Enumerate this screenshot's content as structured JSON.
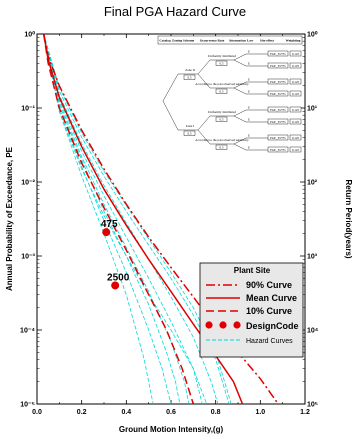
{
  "chart_data": {
    "type": "line",
    "title": "Final PGA Hazard Curve",
    "xlabel": "Ground Motion Intensity,(g)",
    "ylabel": "Annual Probability of Exceedance, PE",
    "y2label": "Return Period(years)",
    "xlim": [
      0.0,
      1.2
    ],
    "ylim": [
      1e-05,
      1
    ],
    "yscale": "log",
    "x_ticks": [
      "0.0",
      "0.2",
      "0.4",
      "0.6",
      "0.8",
      "1.0",
      "1.2"
    ],
    "y_ticks": [
      "10⁻⁵",
      "10⁻⁴",
      "10⁻³",
      "10⁻²",
      "10⁻¹",
      "10⁰"
    ],
    "y2_ticks": [
      "10⁵",
      "10⁴",
      "10³",
      "10²",
      "10¹",
      "10⁰"
    ],
    "legend": {
      "title": "Plant Site",
      "placement": "right",
      "entries": [
        "90% Curve",
        "Mean Curve",
        "10% Curve",
        "DesignCode",
        "Hazard Curves"
      ]
    },
    "series": [
      {
        "name": "90% Curve",
        "style": "dash-dot",
        "color": "#e00000",
        "points": [
          [
            0.03,
            1.0
          ],
          [
            0.05,
            0.5
          ],
          [
            0.1,
            0.2
          ],
          [
            0.2,
            0.05
          ],
          [
            0.3,
            0.015
          ],
          [
            0.4,
            0.005
          ],
          [
            0.5,
            0.0018
          ],
          [
            0.6,
            0.0007
          ],
          [
            0.7,
            0.00028
          ],
          [
            0.8,
            0.00011
          ],
          [
            0.9,
            5e-05
          ],
          [
            1.0,
            2.2e-05
          ],
          [
            1.08,
            1e-05
          ]
        ]
      },
      {
        "name": "Mean Curve",
        "style": "solid",
        "color": "#e00000",
        "points": [
          [
            0.03,
            1.0
          ],
          [
            0.05,
            0.45
          ],
          [
            0.1,
            0.14
          ],
          [
            0.2,
            0.03
          ],
          [
            0.3,
            0.008
          ],
          [
            0.4,
            0.0026
          ],
          [
            0.5,
            0.0009
          ],
          [
            0.6,
            0.00033
          ],
          [
            0.7,
            0.00012
          ],
          [
            0.8,
            4.5e-05
          ],
          [
            0.88,
            2e-05
          ],
          [
            0.92,
            1e-05
          ]
        ]
      },
      {
        "name": "10% Curve",
        "style": "dashed",
        "color": "#e00000",
        "points": [
          [
            0.03,
            1.0
          ],
          [
            0.05,
            0.4
          ],
          [
            0.1,
            0.1
          ],
          [
            0.2,
            0.018
          ],
          [
            0.3,
            0.0045
          ],
          [
            0.4,
            0.0012
          ],
          [
            0.5,
            0.0003
          ],
          [
            0.58,
            0.0001
          ],
          [
            0.65,
            3e-05
          ],
          [
            0.7,
            1e-05
          ]
        ]
      },
      {
        "name": "Hazard Curves",
        "style": "dashed",
        "color": "#00d8d8",
        "curves": [
          [
            [
              0.03,
              1.0
            ],
            [
              0.1,
              0.09
            ],
            [
              0.2,
              0.012
            ],
            [
              0.3,
              0.002
            ],
            [
              0.4,
              0.0003
            ],
            [
              0.48,
              4e-05
            ],
            [
              0.52,
              1e-05
            ]
          ],
          [
            [
              0.03,
              1.0
            ],
            [
              0.1,
              0.1
            ],
            [
              0.2,
              0.016
            ],
            [
              0.3,
              0.003
            ],
            [
              0.4,
              0.0006
            ],
            [
              0.5,
              0.0001
            ],
            [
              0.56,
              3e-05
            ],
            [
              0.6,
              1e-05
            ]
          ],
          [
            [
              0.03,
              1.0
            ],
            [
              0.1,
              0.11
            ],
            [
              0.2,
              0.02
            ],
            [
              0.3,
              0.004
            ],
            [
              0.4,
              0.001
            ],
            [
              0.5,
              0.00022
            ],
            [
              0.58,
              5e-05
            ],
            [
              0.62,
              2e-05
            ],
            [
              0.64,
              1e-05
            ]
          ],
          [
            [
              0.03,
              1.0
            ],
            [
              0.1,
              0.12
            ],
            [
              0.2,
              0.022
            ],
            [
              0.3,
              0.005
            ],
            [
              0.4,
              0.0013
            ],
            [
              0.5,
              0.00033
            ],
            [
              0.6,
              7e-05
            ],
            [
              0.66,
              2e-05
            ],
            [
              0.68,
              1e-05
            ]
          ],
          [
            [
              0.03,
              1.0
            ],
            [
              0.1,
              0.13
            ],
            [
              0.2,
              0.026
            ],
            [
              0.3,
              0.0065
            ],
            [
              0.4,
              0.0018
            ],
            [
              0.5,
              0.0005
            ],
            [
              0.6,
              0.00013
            ],
            [
              0.7,
              3e-05
            ],
            [
              0.74,
              1e-05
            ]
          ],
          [
            [
              0.03,
              1.0
            ],
            [
              0.1,
              0.15
            ],
            [
              0.2,
              0.033
            ],
            [
              0.3,
              0.009
            ],
            [
              0.4,
              0.0028
            ],
            [
              0.5,
              0.0009
            ],
            [
              0.6,
              0.00028
            ],
            [
              0.7,
              8e-05
            ],
            [
              0.78,
              2e-05
            ],
            [
              0.81,
              1e-05
            ]
          ],
          [
            [
              0.03,
              1.0
            ],
            [
              0.1,
              0.17
            ],
            [
              0.2,
              0.04
            ],
            [
              0.3,
              0.012
            ],
            [
              0.4,
              0.004
            ],
            [
              0.5,
              0.0014
            ],
            [
              0.6,
              0.0005
            ],
            [
              0.7,
              0.00016
            ],
            [
              0.8,
              4e-05
            ],
            [
              0.86,
              1e-05
            ]
          ],
          [
            [
              0.03,
              1.0
            ],
            [
              0.1,
              0.19
            ],
            [
              0.2,
              0.046
            ],
            [
              0.3,
              0.014
            ],
            [
              0.4,
              0.0048
            ],
            [
              0.5,
              0.0017
            ],
            [
              0.6,
              0.0006
            ],
            [
              0.7,
              0.0002
            ],
            [
              0.8,
              5e-05
            ],
            [
              0.87,
              1e-05
            ]
          ],
          [
            [
              0.03,
              1.0
            ],
            [
              0.1,
              0.09
            ],
            [
              0.2,
              0.015
            ],
            [
              0.3,
              0.0035
            ],
            [
              0.4,
              0.001
            ],
            [
              0.5,
              0.0003
            ],
            [
              0.6,
              0.0001
            ],
            [
              0.7,
              3e-05
            ],
            [
              0.76,
              1e-05
            ]
          ]
        ]
      }
    ],
    "design_code_points": [
      {
        "label": "475",
        "x": 0.31,
        "y": 0.0021
      },
      {
        "label": "2500",
        "x": 0.35,
        "y": 0.0004
      }
    ]
  },
  "logic_tree": {
    "headers": [
      "Catalog",
      "Zoning Scheme",
      "Occurrence Rate",
      "Attenuation Law",
      "Site effect",
      "Weighting"
    ],
    "zones": [
      "Zone II",
      "Zone I"
    ],
    "zone_weights": [
      "0.5",
      "0.5"
    ],
    "branch_labels": [
      "Uniformly distributed",
      "According to the past observed seismicity"
    ],
    "branch_weights": [
      "0.5",
      "0.5"
    ],
    "attenuation_label": "E",
    "site_label": "PGE_Fa*Fv",
    "weight_label": "0.125"
  }
}
